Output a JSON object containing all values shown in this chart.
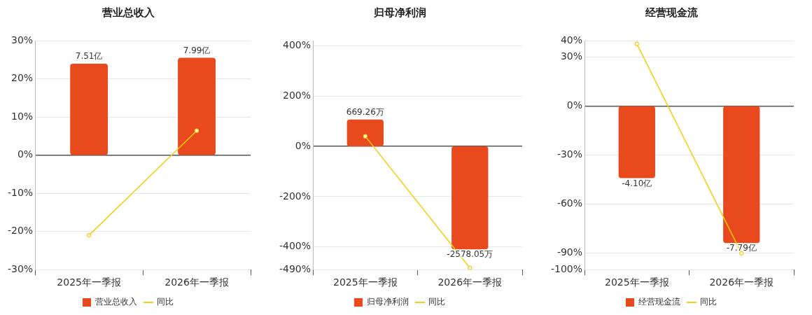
{
  "chart_data": [
    {
      "type": "bar",
      "title": "营业总收入",
      "categories": [
        "2025年一季报",
        "2026年一季报"
      ],
      "series": [
        {
          "name": "营业总收入",
          "axis": "y2",
          "color": "#e84a1e",
          "values": [
            7.51,
            7.99
          ],
          "value_labels": [
            "7.51亿",
            "7.99亿"
          ]
        },
        {
          "name": "同比",
          "type": "line",
          "color": "#f2cf10",
          "values": [
            -21,
            6.4
          ]
        }
      ],
      "ylim": [
        -30,
        30
      ],
      "yticks": [
        {
          "value": 30,
          "label": "30%"
        },
        {
          "value": 20,
          "label": "20%"
        },
        {
          "value": 10,
          "label": "10%"
        },
        {
          "value": 0,
          "label": "0%"
        },
        {
          "value": -10,
          "label": "-10%"
        },
        {
          "value": -20,
          "label": "-20%"
        },
        {
          "value": -30,
          "label": "-30%"
        }
      ],
      "y2lim": [
        -9.4,
        9.4
      ],
      "tick_labels": "xy",
      "grid": "y",
      "legend": "bottom",
      "marker": "circle"
    },
    {
      "type": "bar",
      "title": "归母净利润",
      "categories": [
        "2025年一季报",
        "2026年一季报"
      ],
      "series": [
        {
          "name": "归母净利润",
          "axis": "y2",
          "color": "#e84a1e",
          "values": [
            669.26,
            -2578.05
          ],
          "value_labels": [
            "669.26万",
            "-2578.05万"
          ]
        },
        {
          "name": "同比",
          "type": "line",
          "color": "#f2cf10",
          "values": [
            40,
            -483
          ]
        }
      ],
      "ylim": [
        -490,
        420
      ],
      "yticks": [
        {
          "value": 400,
          "label": "400%"
        },
        {
          "value": 200,
          "label": "200%"
        },
        {
          "value": 0,
          "label": "0%"
        },
        {
          "value": -200,
          "label": "-200%"
        },
        {
          "value": -400,
          "label": "-400%"
        },
        {
          "value": -490,
          "label": "-490%"
        }
      ],
      "y2lim": [
        -3087,
        2646
      ],
      "tick_labels": "xy",
      "grid": "y",
      "legend": "bottom",
      "marker": "circle"
    },
    {
      "type": "bar",
      "title": "经营现金流",
      "categories": [
        "2025年一季报",
        "2026年一季报"
      ],
      "series": [
        {
          "name": "经营现金流",
          "axis": "y2",
          "color": "#e84a1e",
          "values": [
            -4.1,
            -7.79
          ],
          "value_labels": [
            "-4.10亿",
            "-7.79亿"
          ]
        },
        {
          "name": "同比",
          "type": "line",
          "color": "#f2cf10",
          "values": [
            38,
            -90
          ]
        }
      ],
      "ylim": [
        -100,
        40
      ],
      "yticks": [
        {
          "value": 40,
          "label": "40%"
        },
        {
          "value": 30,
          "label": "30%"
        },
        {
          "value": 0,
          "label": "0%"
        },
        {
          "value": -30,
          "label": "-30%"
        },
        {
          "value": -60,
          "label": "-60%"
        },
        {
          "value": -90,
          "label": "-90%"
        },
        {
          "value": -100,
          "label": "-100%"
        }
      ],
      "y2lim": [
        -9.3,
        3.72
      ],
      "tick_labels": "xy",
      "grid": "y",
      "legend": "bottom",
      "marker": "circle"
    }
  ]
}
